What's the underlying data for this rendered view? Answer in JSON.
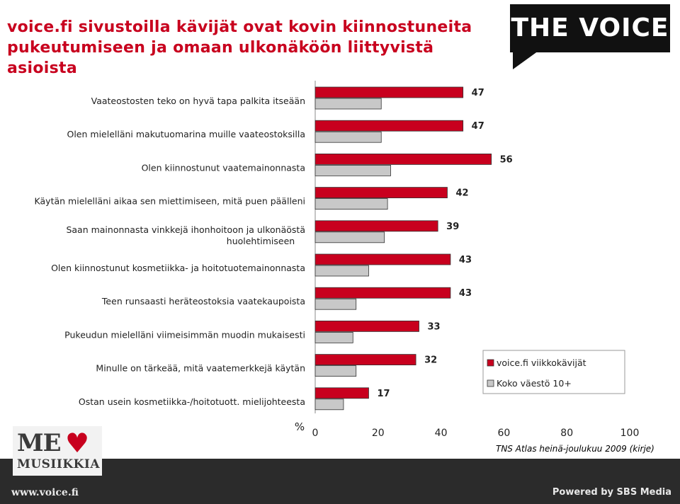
{
  "title": "voice.fi sivustoilla kävijät ovat kovin kiinnostuneita pukeutumiseen ja omaan ulkonäköön liittyvistä asioista",
  "logo": {
    "text": "THE VOICE"
  },
  "badge": {
    "line1": "ME",
    "line2": "MUSIIKKIA"
  },
  "footer": {
    "left": "www.voice.fi",
    "right": "Powered by SBS Media"
  },
  "source": "TNS Atlas heinä-joulukuu  2009 (kirje)",
  "colors": {
    "series1": "#c8001e",
    "series2": "#c8c8c8",
    "title": "#c8001e"
  },
  "chart_data": {
    "type": "bar",
    "orientation": "horizontal",
    "categories": [
      "Vaateostosten teko on hyvä tapa palkita itseään",
      "Olen mielelläni makutuomarina muille vaateostoksilla",
      "Olen kiinnostunut vaatemainonnasta",
      "Käytän mielelläni aikaa sen miettimiseen, mitä puen päälleni",
      "Saan mainonnasta vinkkejä ihonhoitoon ja ulkonäöstä huolehtimiseen",
      "Olen kiinnostunut kosmetiikka- ja hoitotuotemainonnasta",
      "Teen runsaasti heräteostoksia vaatekaupoista",
      "Pukeudun mielelläni viimeisimmän muodin mukaisesti",
      "Minulle on tärkeää, mitä vaatemerkkejä käytän",
      "Ostan usein kosmetiikka-/hoitotuott. mielijohteesta"
    ],
    "series": [
      {
        "name": "voice.fi viikkokävijät",
        "values": [
          47,
          47,
          56,
          42,
          39,
          43,
          43,
          33,
          32,
          17
        ],
        "color": "#c8001e"
      },
      {
        "name": "Koko väestö 10+",
        "values": [
          21,
          21,
          24,
          23,
          22,
          17,
          13,
          12,
          13,
          9
        ],
        "color": "#c8c8c8"
      }
    ],
    "xlim": [
      0,
      100
    ],
    "xticks": [
      0,
      20,
      40,
      60,
      80,
      100
    ],
    "xlabel": "%",
    "data_labels": "series 1 only",
    "legend_position": "right",
    "grid": false
  }
}
